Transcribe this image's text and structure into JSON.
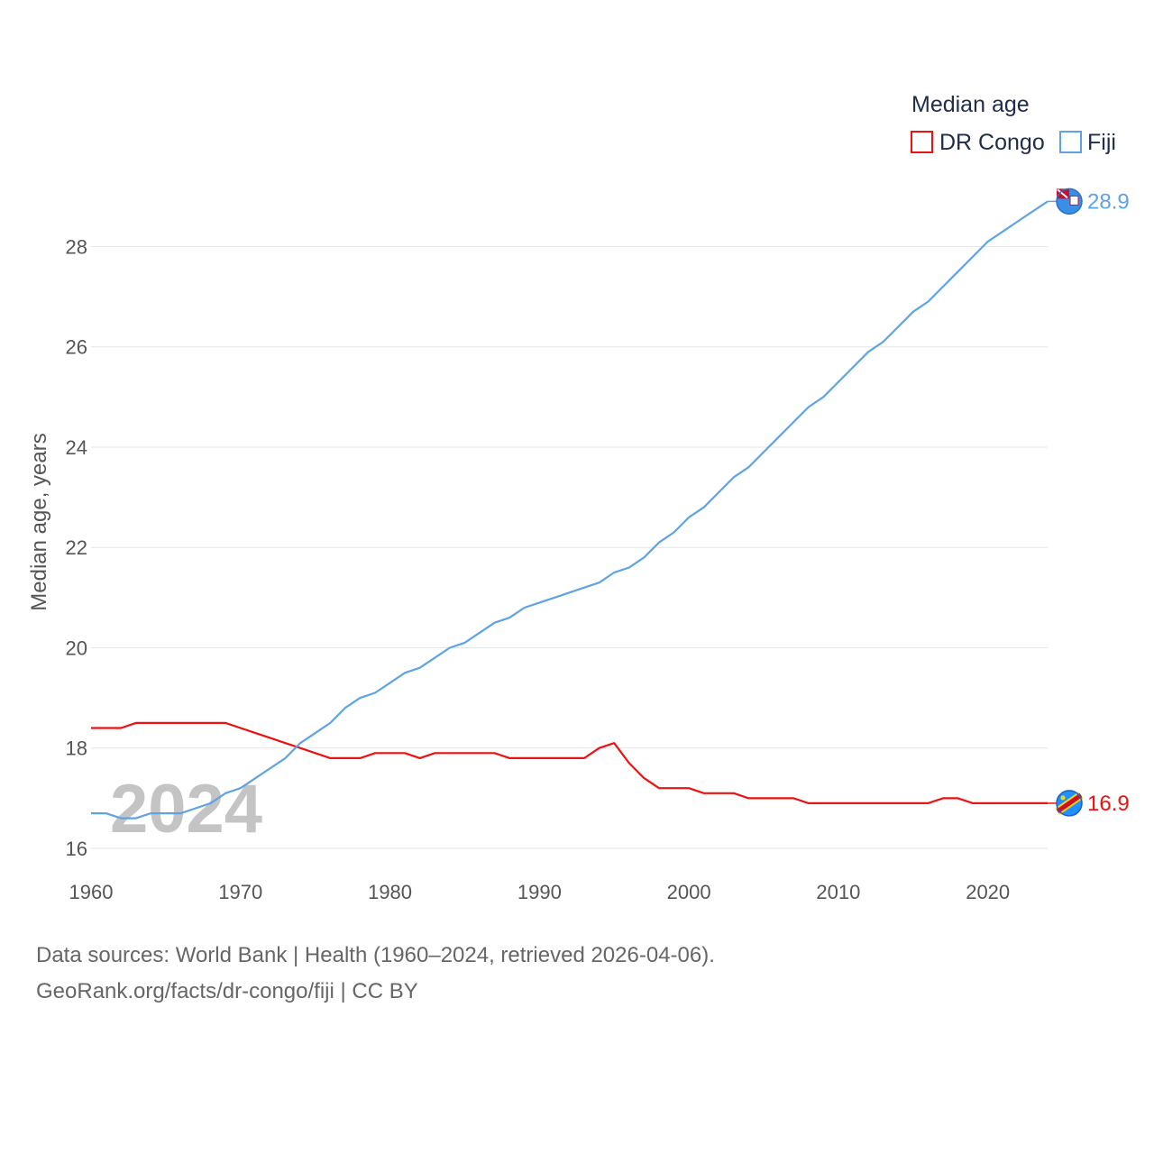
{
  "chart_data": {
    "type": "line",
    "title": "",
    "xlabel": "",
    "ylabel": "Median age, years",
    "xlim": [
      1960,
      2024
    ],
    "ylim": [
      16,
      29.5
    ],
    "yticks": [
      16,
      18,
      20,
      22,
      24,
      26,
      28
    ],
    "xticks": [
      1960,
      1970,
      1980,
      1990,
      2000,
      2010,
      2020
    ],
    "year_label": "2024",
    "legend": {
      "title": "Median age",
      "position": "top-right"
    },
    "series": [
      {
        "name": "DR Congo",
        "color": "#ee1111",
        "end_label": "16.9",
        "x": [
          1960,
          1961,
          1962,
          1963,
          1964,
          1965,
          1966,
          1967,
          1968,
          1969,
          1970,
          1971,
          1972,
          1973,
          1974,
          1975,
          1976,
          1977,
          1978,
          1979,
          1980,
          1981,
          1982,
          1983,
          1984,
          1985,
          1986,
          1987,
          1988,
          1989,
          1990,
          1991,
          1992,
          1993,
          1994,
          1995,
          1996,
          1997,
          1998,
          1999,
          2000,
          2001,
          2002,
          2003,
          2004,
          2005,
          2006,
          2007,
          2008,
          2009,
          2010,
          2011,
          2012,
          2013,
          2014,
          2015,
          2016,
          2017,
          2018,
          2019,
          2020,
          2021,
          2022,
          2023,
          2024
        ],
        "values": [
          18.4,
          18.4,
          18.4,
          18.5,
          18.5,
          18.5,
          18.5,
          18.5,
          18.5,
          18.5,
          18.4,
          18.3,
          18.2,
          18.1,
          18.0,
          17.9,
          17.8,
          17.8,
          17.8,
          17.9,
          17.9,
          17.9,
          17.8,
          17.9,
          17.9,
          17.9,
          17.9,
          17.9,
          17.8,
          17.8,
          17.8,
          17.8,
          17.8,
          17.8,
          18.0,
          18.1,
          17.7,
          17.4,
          17.2,
          17.2,
          17.2,
          17.1,
          17.1,
          17.1,
          17.0,
          17.0,
          17.0,
          17.0,
          16.9,
          16.9,
          16.9,
          16.9,
          16.9,
          16.9,
          16.9,
          16.9,
          16.9,
          17.0,
          17.0,
          16.9,
          16.9,
          16.9,
          16.9,
          16.9,
          16.9
        ]
      },
      {
        "name": "Fiji",
        "color": "#5ea3e6",
        "end_label": "28.9",
        "x": [
          1960,
          1961,
          1962,
          1963,
          1964,
          1965,
          1966,
          1967,
          1968,
          1969,
          1970,
          1971,
          1972,
          1973,
          1974,
          1975,
          1976,
          1977,
          1978,
          1979,
          1980,
          1981,
          1982,
          1983,
          1984,
          1985,
          1986,
          1987,
          1988,
          1989,
          1990,
          1991,
          1992,
          1993,
          1994,
          1995,
          1996,
          1997,
          1998,
          1999,
          2000,
          2001,
          2002,
          2003,
          2004,
          2005,
          2006,
          2007,
          2008,
          2009,
          2010,
          2011,
          2012,
          2013,
          2014,
          2015,
          2016,
          2017,
          2018,
          2019,
          2020,
          2021,
          2022,
          2023,
          2024
        ],
        "values": [
          16.7,
          16.7,
          16.6,
          16.6,
          16.7,
          16.7,
          16.7,
          16.8,
          16.9,
          17.1,
          17.2,
          17.4,
          17.6,
          17.8,
          18.1,
          18.3,
          18.5,
          18.8,
          19.0,
          19.1,
          19.3,
          19.5,
          19.6,
          19.8,
          20.0,
          20.1,
          20.3,
          20.5,
          20.6,
          20.8,
          20.9,
          21.0,
          21.1,
          21.2,
          21.3,
          21.5,
          21.6,
          21.8,
          22.1,
          22.3,
          22.6,
          22.8,
          23.1,
          23.4,
          23.6,
          23.9,
          24.2,
          24.5,
          24.8,
          25.0,
          25.3,
          25.6,
          25.9,
          26.1,
          26.4,
          26.7,
          26.9,
          27.2,
          27.5,
          27.8,
          28.1,
          28.3,
          28.5,
          28.7,
          28.9
        ]
      }
    ]
  },
  "footer": {
    "sources": "Data sources: World Bank | Health (1960–2024, retrieved 2026-04-06).",
    "credit": "GeoRank.org/facts/dr-congo/fiji | CC BY"
  }
}
